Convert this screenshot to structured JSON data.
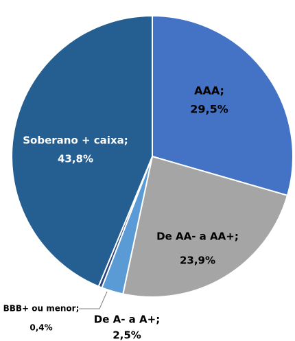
{
  "chart_data": {
    "type": "pie",
    "categories": [
      "AAA;",
      "De AA- a AA+;",
      "De A- a A+;",
      "BBB+ ou menor;",
      "Soberano + caixa;"
    ],
    "values": [
      29.5,
      23.9,
      2.5,
      0.4,
      43.8
    ],
    "value_labels": [
      "29,5%",
      "23,9%",
      "2,5%",
      "0,4%",
      "43,8%"
    ],
    "colors": [
      "#4472c4",
      "#a5a5a5",
      "#5b9bd5",
      "#264478",
      "#255e91"
    ]
  }
}
